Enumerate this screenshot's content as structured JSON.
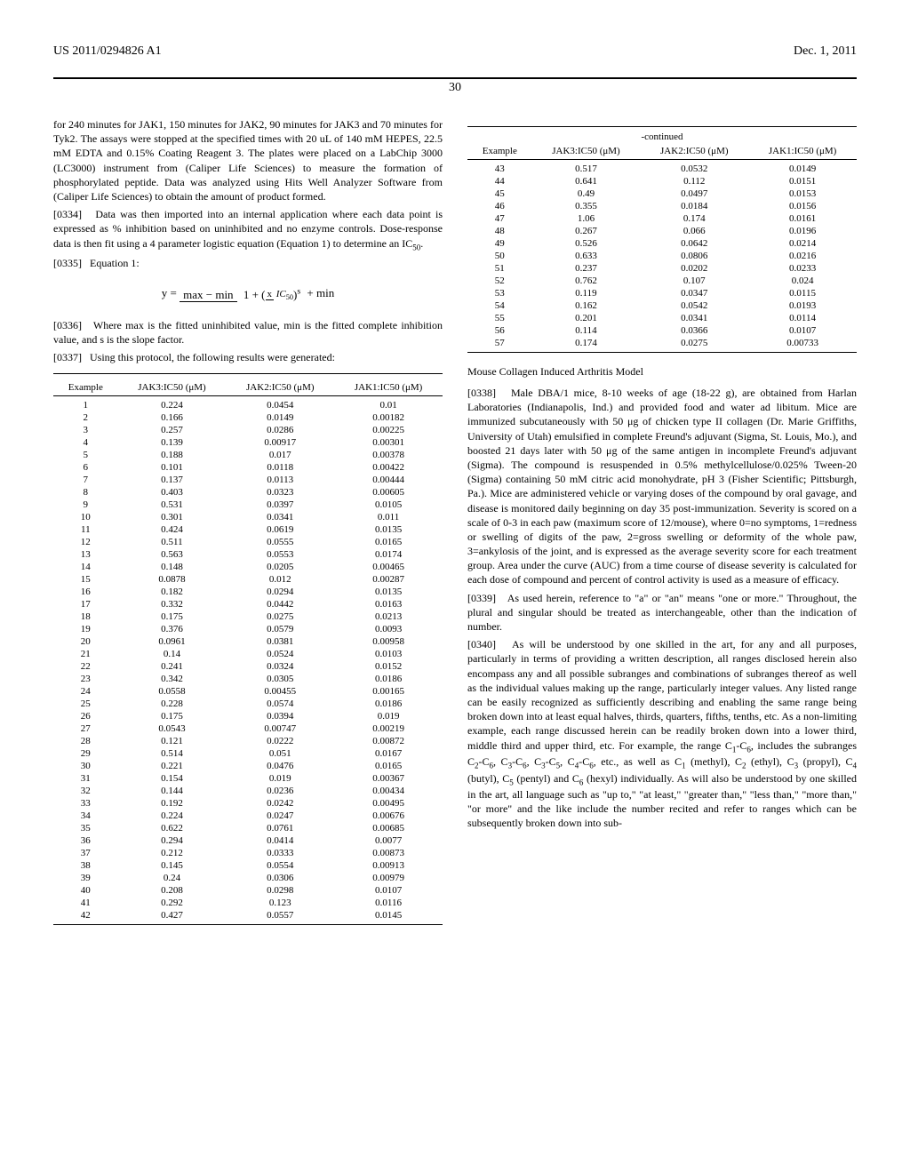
{
  "header": {
    "pub_number": "US 2011/0294826 A1",
    "pub_date": "Dec. 1, 2011"
  },
  "page_number": "30",
  "left_column": {
    "p_continue": "for 240 minutes for JAK1, 150 minutes for JAK2, 90 minutes for JAK3 and 70 minutes for Tyk2. The assays were stopped at the specified times with 20 uL of 140 mM HEPES, 22.5 mM EDTA and 0.15% Coating Reagent 3. The plates were placed on a LabChip 3000 (LC3000) instrument from (Caliper Life Sciences) to measure the formation of phosphorylated peptide. Data was analyzed using Hits Well Analyzer Software from (Caliper Life Sciences) to obtain the amount of product formed.",
    "p0334_num": "[0334]",
    "p0334": "Data was then imported into an internal application where each data point is expressed as % inhibition based on uninhibited and no enzyme controls. Dose-response data is then fit using a 4 parameter logistic equation (Equation 1) to determine an IC",
    "p0334_tail": ".",
    "p0335_num": "[0335]",
    "p0335": "Equation 1:",
    "p0336_num": "[0336]",
    "p0336": "Where max is the fitted uninhibited value, min is the fitted complete inhibition value, and s is the slope factor.",
    "p0337_num": "[0337]",
    "p0337": "Using this protocol, the following results were generated:",
    "table1": {
      "headers": [
        "Example",
        "JAK3:IC50 (μM)",
        "JAK2:IC50 (μM)",
        "JAK1:IC50 (μM)"
      ],
      "rows": [
        [
          "1",
          "0.224",
          "0.0454",
          "0.01"
        ],
        [
          "2",
          "0.166",
          "0.0149",
          "0.00182"
        ],
        [
          "3",
          "0.257",
          "0.0286",
          "0.00225"
        ],
        [
          "4",
          "0.139",
          "0.00917",
          "0.00301"
        ],
        [
          "5",
          "0.188",
          "0.017",
          "0.00378"
        ],
        [
          "6",
          "0.101",
          "0.0118",
          "0.00422"
        ],
        [
          "7",
          "0.137",
          "0.0113",
          "0.00444"
        ],
        [
          "8",
          "0.403",
          "0.0323",
          "0.00605"
        ],
        [
          "9",
          "0.531",
          "0.0397",
          "0.0105"
        ],
        [
          "10",
          "0.301",
          "0.0341",
          "0.011"
        ],
        [
          "11",
          "0.424",
          "0.0619",
          "0.0135"
        ],
        [
          "12",
          "0.511",
          "0.0555",
          "0.0165"
        ],
        [
          "13",
          "0.563",
          "0.0553",
          "0.0174"
        ],
        [
          "14",
          "0.148",
          "0.0205",
          "0.00465"
        ],
        [
          "15",
          "0.0878",
          "0.012",
          "0.00287"
        ],
        [
          "16",
          "0.182",
          "0.0294",
          "0.0135"
        ],
        [
          "17",
          "0.332",
          "0.0442",
          "0.0163"
        ],
        [
          "18",
          "0.175",
          "0.0275",
          "0.0213"
        ],
        [
          "19",
          "0.376",
          "0.0579",
          "0.0093"
        ],
        [
          "20",
          "0.0961",
          "0.0381",
          "0.00958"
        ],
        [
          "21",
          "0.14",
          "0.0524",
          "0.0103"
        ],
        [
          "22",
          "0.241",
          "0.0324",
          "0.0152"
        ],
        [
          "23",
          "0.342",
          "0.0305",
          "0.0186"
        ],
        [
          "24",
          "0.0558",
          "0.00455",
          "0.00165"
        ],
        [
          "25",
          "0.228",
          "0.0574",
          "0.0186"
        ],
        [
          "26",
          "0.175",
          "0.0394",
          "0.019"
        ],
        [
          "27",
          "0.0543",
          "0.00747",
          "0.00219"
        ],
        [
          "28",
          "0.121",
          "0.0222",
          "0.00872"
        ],
        [
          "29",
          "0.514",
          "0.051",
          "0.0167"
        ],
        [
          "30",
          "0.221",
          "0.0476",
          "0.0165"
        ],
        [
          "31",
          "0.154",
          "0.019",
          "0.00367"
        ],
        [
          "32",
          "0.144",
          "0.0236",
          "0.00434"
        ],
        [
          "33",
          "0.192",
          "0.0242",
          "0.00495"
        ],
        [
          "34",
          "0.224",
          "0.0247",
          "0.00676"
        ],
        [
          "35",
          "0.622",
          "0.0761",
          "0.00685"
        ],
        [
          "36",
          "0.294",
          "0.0414",
          "0.0077"
        ],
        [
          "37",
          "0.212",
          "0.0333",
          "0.00873"
        ],
        [
          "38",
          "0.145",
          "0.0554",
          "0.00913"
        ],
        [
          "39",
          "0.24",
          "0.0306",
          "0.00979"
        ],
        [
          "40",
          "0.208",
          "0.0298",
          "0.0107"
        ],
        [
          "41",
          "0.292",
          "0.123",
          "0.0116"
        ],
        [
          "42",
          "0.427",
          "0.0557",
          "0.0145"
        ]
      ]
    }
  },
  "right_column": {
    "table2": {
      "caption": "-continued",
      "headers": [
        "Example",
        "JAK3:IC50 (μM)",
        "JAK2:IC50 (μM)",
        "JAK1:IC50 (μM)"
      ],
      "rows": [
        [
          "43",
          "0.517",
          "0.0532",
          "0.0149"
        ],
        [
          "44",
          "0.641",
          "0.112",
          "0.0151"
        ],
        [
          "45",
          "0.49",
          "0.0497",
          "0.0153"
        ],
        [
          "46",
          "0.355",
          "0.0184",
          "0.0156"
        ],
        [
          "47",
          "1.06",
          "0.174",
          "0.0161"
        ],
        [
          "48",
          "0.267",
          "0.066",
          "0.0196"
        ],
        [
          "49",
          "0.526",
          "0.0642",
          "0.0214"
        ],
        [
          "50",
          "0.633",
          "0.0806",
          "0.0216"
        ],
        [
          "51",
          "0.237",
          "0.0202",
          "0.0233"
        ],
        [
          "52",
          "0.762",
          "0.107",
          "0.024"
        ],
        [
          "53",
          "0.119",
          "0.0347",
          "0.0115"
        ],
        [
          "54",
          "0.162",
          "0.0542",
          "0.0193"
        ],
        [
          "55",
          "0.201",
          "0.0341",
          "0.0114"
        ],
        [
          "56",
          "0.114",
          "0.0366",
          "0.0107"
        ],
        [
          "57",
          "0.174",
          "0.0275",
          "0.00733"
        ]
      ]
    },
    "section_title": "Mouse Collagen Induced Arthritis Model",
    "p0338_num": "[0338]",
    "p0338": "Male DBA/1 mice, 8-10 weeks of age (18-22 g), are obtained from Harlan Laboratories (Indianapolis, Ind.) and provided food and water ad libitum. Mice are immunized subcutaneously with 50 μg of chicken type II collagen (Dr. Marie Griffiths, University of Utah) emulsified in complete Freund's adjuvant (Sigma, St. Louis, Mo.), and boosted 21 days later with 50 μg of the same antigen in incomplete Freund's adjuvant (Sigma). The compound is resuspended in 0.5% methylcellulose/0.025% Tween-20 (Sigma) containing 50 mM citric acid monohydrate, pH 3 (Fisher Scientific; Pittsburgh, Pa.). Mice are administered vehicle or varying doses of the compound by oral gavage, and disease is monitored daily beginning on day 35 post-immunization. Severity is scored on a scale of 0-3 in each paw (maximum score of 12/mouse), where 0=no symptoms, 1=redness or swelling of digits of the paw, 2=gross swelling or deformity of the whole paw, 3=ankylosis of the joint, and is expressed as the average severity score for each treatment group. Area under the curve (AUC) from a time course of disease severity is calculated for each dose of compound and percent of control activity is used as a measure of efficacy.",
    "p0339_num": "[0339]",
    "p0339": "As used herein, reference to \"a\" or \"an\" means \"one or more.\" Throughout, the plural and singular should be treated as interchangeable, other than the indication of number.",
    "p0340_num": "[0340]",
    "p0340_a": "As will be understood by one skilled in the art, for any and all purposes, particularly in terms of providing a written description, all ranges disclosed herein also encompass any and all possible subranges and combinations of subranges thereof as well as the individual values making up the range, particularly integer values. Any listed range can be easily recognized as sufficiently describing and enabling the same range being broken down into at least equal halves, thirds, quarters, fifths, tenths, etc. As a non-limiting example, each range discussed herein can be readily broken down into a lower third, middle third and upper third, etc. For example, the range C",
    "p0340_b": "-C",
    "p0340_c": ", includes the subranges C",
    "p0340_d": "-C",
    "p0340_e": ", C",
    "p0340_f": "-C",
    "p0340_g": ", C",
    "p0340_h": "-C",
    "p0340_i": ", C",
    "p0340_j": "-C",
    "p0340_k": ", etc., as well as C",
    "p0340_l": " (methyl), C",
    "p0340_m": " (ethyl), C",
    "p0340_n": " (propyl), C",
    "p0340_o": " (butyl), C",
    "p0340_p": " (pentyl) and C",
    "p0340_q": " (hexyl) individually. As will also be understood by one skilled in the art, all language such as \"up to,\" \"at least,\" \"greater than,\" \"less than,\" \"more than,\" \"or more\" and the like include the number recited and refer to ranges which can be subsequently broken down into sub-",
    "subs": {
      "s1": "1",
      "s6": "6",
      "s2": "2",
      "s3": "3",
      "s5": "5",
      "s4": "4"
    }
  },
  "equation": {
    "lhs": "y =",
    "top": "max − min",
    "one": "1 +",
    "x": "x",
    "ic50": "IC",
    "ic50_sub": "50",
    "exp": "s",
    "tail": "+ min"
  }
}
